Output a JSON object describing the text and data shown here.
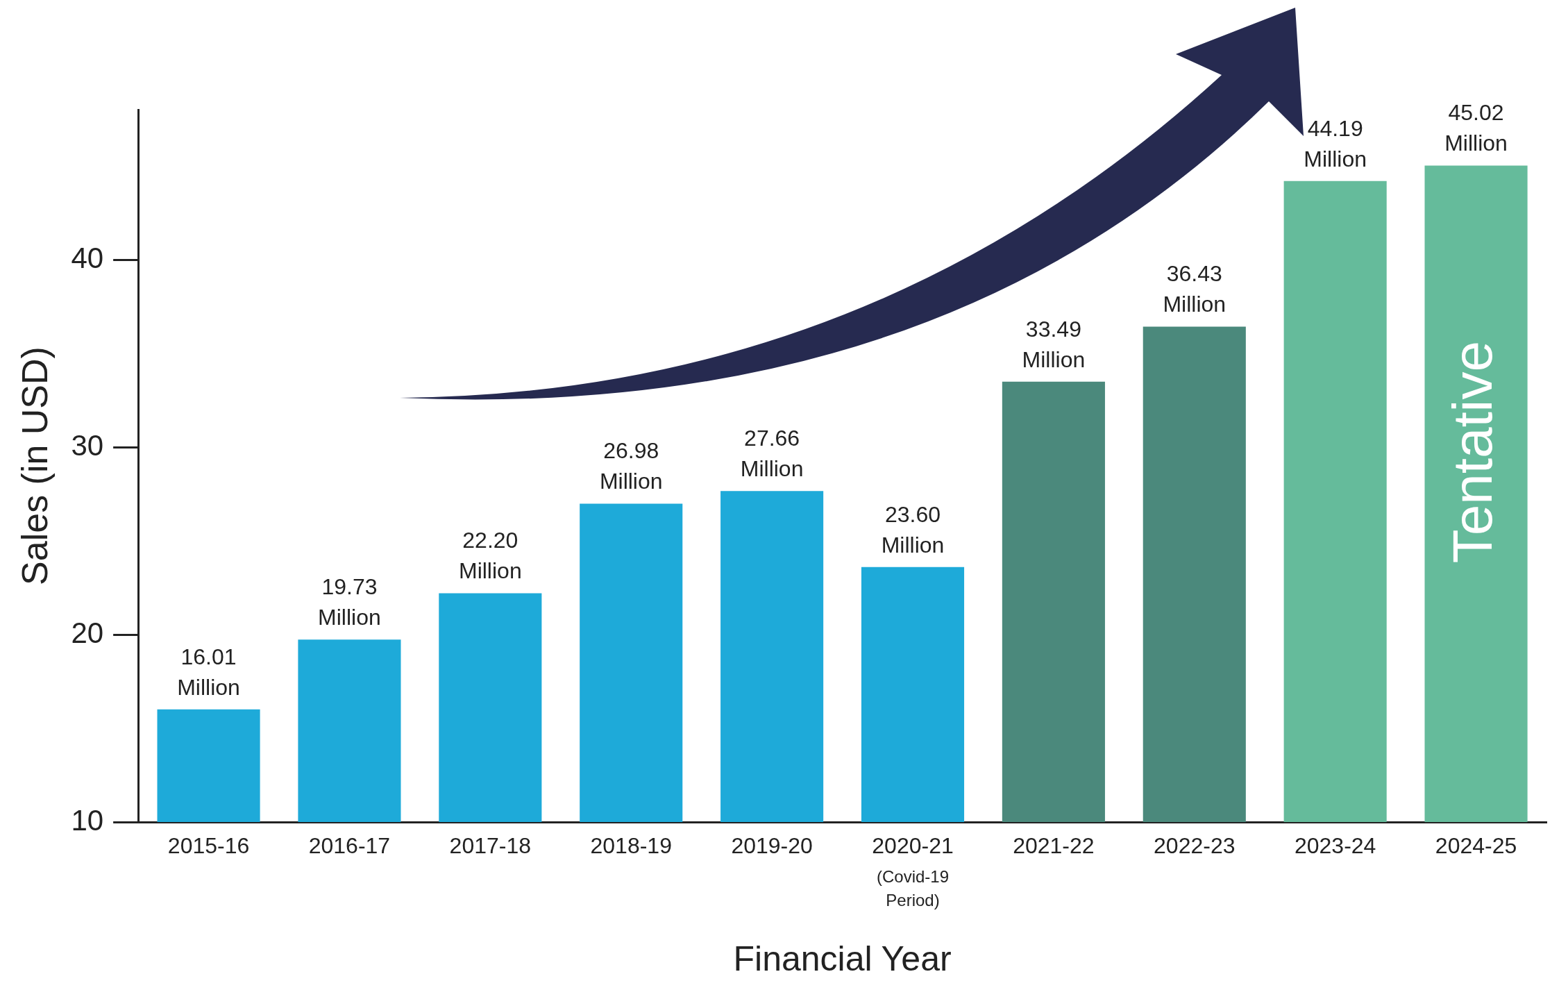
{
  "chart_data": {
    "type": "bar",
    "xlabel": "Financial Year",
    "ylabel": "Sales (in USD)",
    "categories": [
      "2015-16",
      "2016-17",
      "2017-18",
      "2018-19",
      "2019-20",
      "2020-21 (Covid-19 Period)",
      "2021-22",
      "2022-23",
      "2023-24",
      "2024-25"
    ],
    "values": [
      16.01,
      19.73,
      22.2,
      26.98,
      27.66,
      23.6,
      33.49,
      36.43,
      44.19,
      45.02
    ],
    "value_labels": [
      "16.01 Million",
      "19.73 Million",
      "22.20 Million",
      "26.98 Million",
      "27.66 Million",
      "23.60 Million",
      "33.49 Million",
      "36.43 Million",
      "44.19 Million",
      "45.02 Million"
    ],
    "colors": [
      "#1eaad9",
      "#1eaad9",
      "#1eaad9",
      "#1eaad9",
      "#1eaad9",
      "#1eaad9",
      "#4b897c",
      "#4b897c",
      "#65bb9b",
      "#65bb9b"
    ],
    "ylim": [
      10,
      48
    ],
    "yticks": [
      10,
      20,
      30,
      40
    ],
    "grid": false,
    "legend": false,
    "annotations": [
      "Tentative"
    ]
  }
}
